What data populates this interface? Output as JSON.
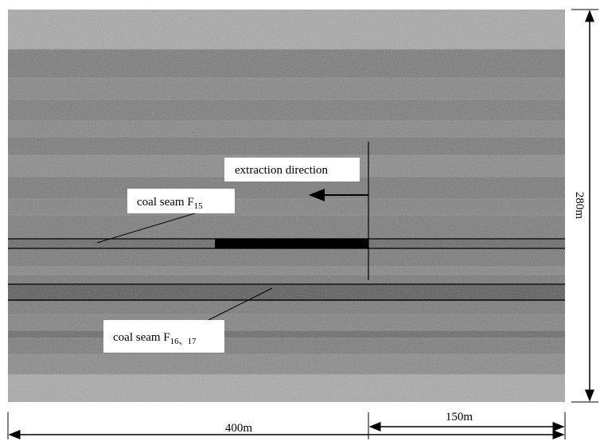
{
  "labels": {
    "extraction_direction": "extraction direction",
    "seam_f15": {
      "text": "coal seam F",
      "subscript": "15"
    },
    "seam_f16_17": {
      "text": "coal seam F",
      "subscript": "16、17"
    }
  },
  "dimensions": {
    "total_width": "400m",
    "right_width": "150m",
    "height": "280m"
  }
}
